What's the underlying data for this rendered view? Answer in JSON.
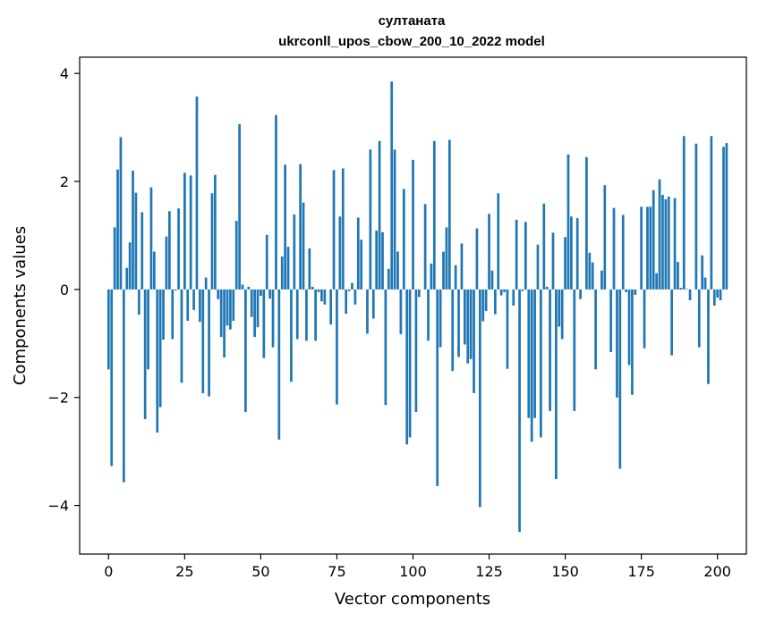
{
  "chart_data": {
    "type": "bar",
    "title_line1": "султаната",
    "title_line2": "ukrconll_upos_cbow_200_10_2022 model",
    "xlabel": "Vector components",
    "ylabel": "Components values",
    "xlim": [
      -9.5,
      209.5
    ],
    "ylim": [
      -4.9,
      4.3
    ],
    "xticks": [
      0,
      25,
      50,
      75,
      100,
      125,
      150,
      175,
      200
    ],
    "yticks": [
      -4,
      -2,
      0,
      2,
      4
    ],
    "ytick_labels": [
      "−4",
      "−2",
      "0",
      "2",
      "4"
    ],
    "bar_color": "#1f77b4",
    "values": [
      -1.48,
      -3.27,
      1.15,
      2.22,
      2.82,
      -3.57,
      0.4,
      0.87,
      2.2,
      1.79,
      -0.47,
      1.43,
      -2.4,
      -1.48,
      1.89,
      0.7,
      -2.65,
      -2.18,
      -0.93,
      0.98,
      1.45,
      -0.92,
      -0.02,
      1.5,
      -1.73,
      2.16,
      -0.58,
      2.11,
      -0.38,
      3.57,
      -0.6,
      -1.92,
      0.22,
      -1.98,
      1.78,
      2.12,
      -0.18,
      -0.88,
      -1.26,
      -0.67,
      -0.74,
      -0.58,
      1.27,
      3.06,
      0.09,
      -2.27,
      0.05,
      -0.51,
      -0.88,
      -0.7,
      -0.12,
      -1.27,
      1.01,
      -0.17,
      -1.07,
      3.23,
      -2.78,
      0.61,
      2.31,
      0.79,
      -1.71,
      1.39,
      -0.92,
      2.32,
      1.61,
      -0.95,
      0.76,
      0.05,
      -0.95,
      -0.05,
      -0.22,
      -0.28,
      0.0,
      -0.65,
      2.21,
      -2.13,
      1.35,
      2.24,
      -0.45,
      -0.03,
      0.12,
      -0.28,
      1.33,
      0.92,
      0.0,
      -0.82,
      2.59,
      -0.54,
      1.09,
      2.75,
      1.06,
      -2.14,
      0.38,
      3.85,
      2.59,
      0.7,
      -0.83,
      1.86,
      -2.87,
      -2.74,
      2.4,
      -2.27,
      -0.14,
      0.0,
      1.58,
      -0.95,
      0.48,
      2.75,
      -3.64,
      -1.07,
      0.7,
      1.15,
      2.77,
      -1.51,
      0.45,
      -1.25,
      0.85,
      -1.02,
      -1.37,
      -1.29,
      -1.92,
      1.13,
      -4.03,
      -0.59,
      -0.4,
      1.4,
      0.35,
      -0.46,
      1.78,
      -0.11,
      -0.05,
      -1.47,
      0.0,
      -0.3,
      1.29,
      -4.49,
      -0.03,
      1.25,
      -2.38,
      -2.82,
      -2.38,
      0.83,
      -2.74,
      1.59,
      0.05,
      -2.25,
      1.05,
      -3.51,
      -0.69,
      -0.92,
      0.97,
      2.5,
      1.35,
      -2.25,
      1.32,
      -0.18,
      0.0,
      2.45,
      0.68,
      0.5,
      -1.48,
      0.0,
      0.35,
      1.93,
      0.0,
      -1.16,
      1.51,
      -2.0,
      -3.32,
      1.38,
      -0.05,
      -1.4,
      -1.95,
      -0.1,
      0.0,
      1.53,
      -1.09,
      1.53,
      1.53,
      1.84,
      0.3,
      2.04,
      1.75,
      1.67,
      1.72,
      -1.22,
      1.69,
      0.51,
      0.03,
      2.84,
      0.01,
      -0.2,
      0.0,
      2.7,
      -1.07,
      0.63,
      0.22,
      -1.75,
      2.84,
      -0.3,
      -0.15,
      -0.2,
      2.64,
      2.71
    ]
  }
}
